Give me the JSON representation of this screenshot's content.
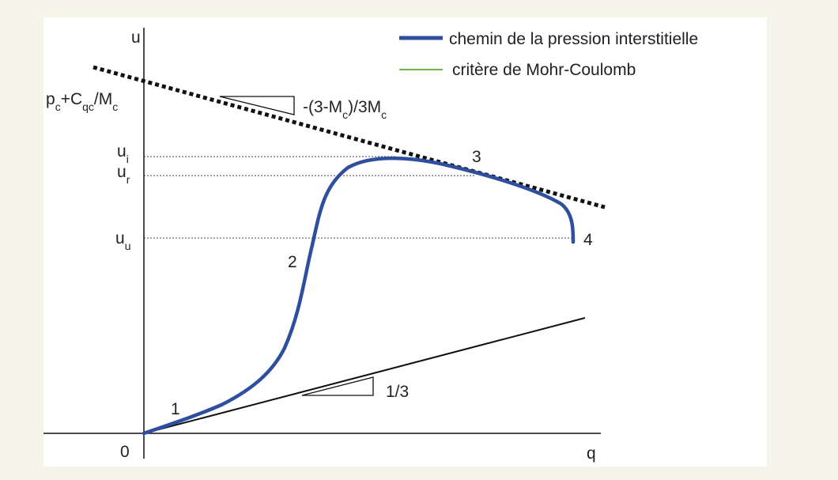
{
  "axes": {
    "y_label": "u",
    "x_label": "q",
    "origin": "0"
  },
  "legend": [
    {
      "label": "chemin de la pression interstitielle"
    },
    {
      "label": "critère de Mohr-Coulomb"
    }
  ],
  "intercept": [
    "p",
    "c",
    "+C",
    "qc",
    "/M",
    "c"
  ],
  "levels": [
    [
      "u",
      "i"
    ],
    [
      "u",
      "r"
    ],
    [
      "u",
      "u"
    ]
  ],
  "slopes": {
    "mohr_coulomb": [
      "-(3-M",
      "c",
      ")/3M",
      "c"
    ],
    "total": "1/3"
  },
  "stages": [
    "1",
    "2",
    "3",
    "4"
  ]
}
